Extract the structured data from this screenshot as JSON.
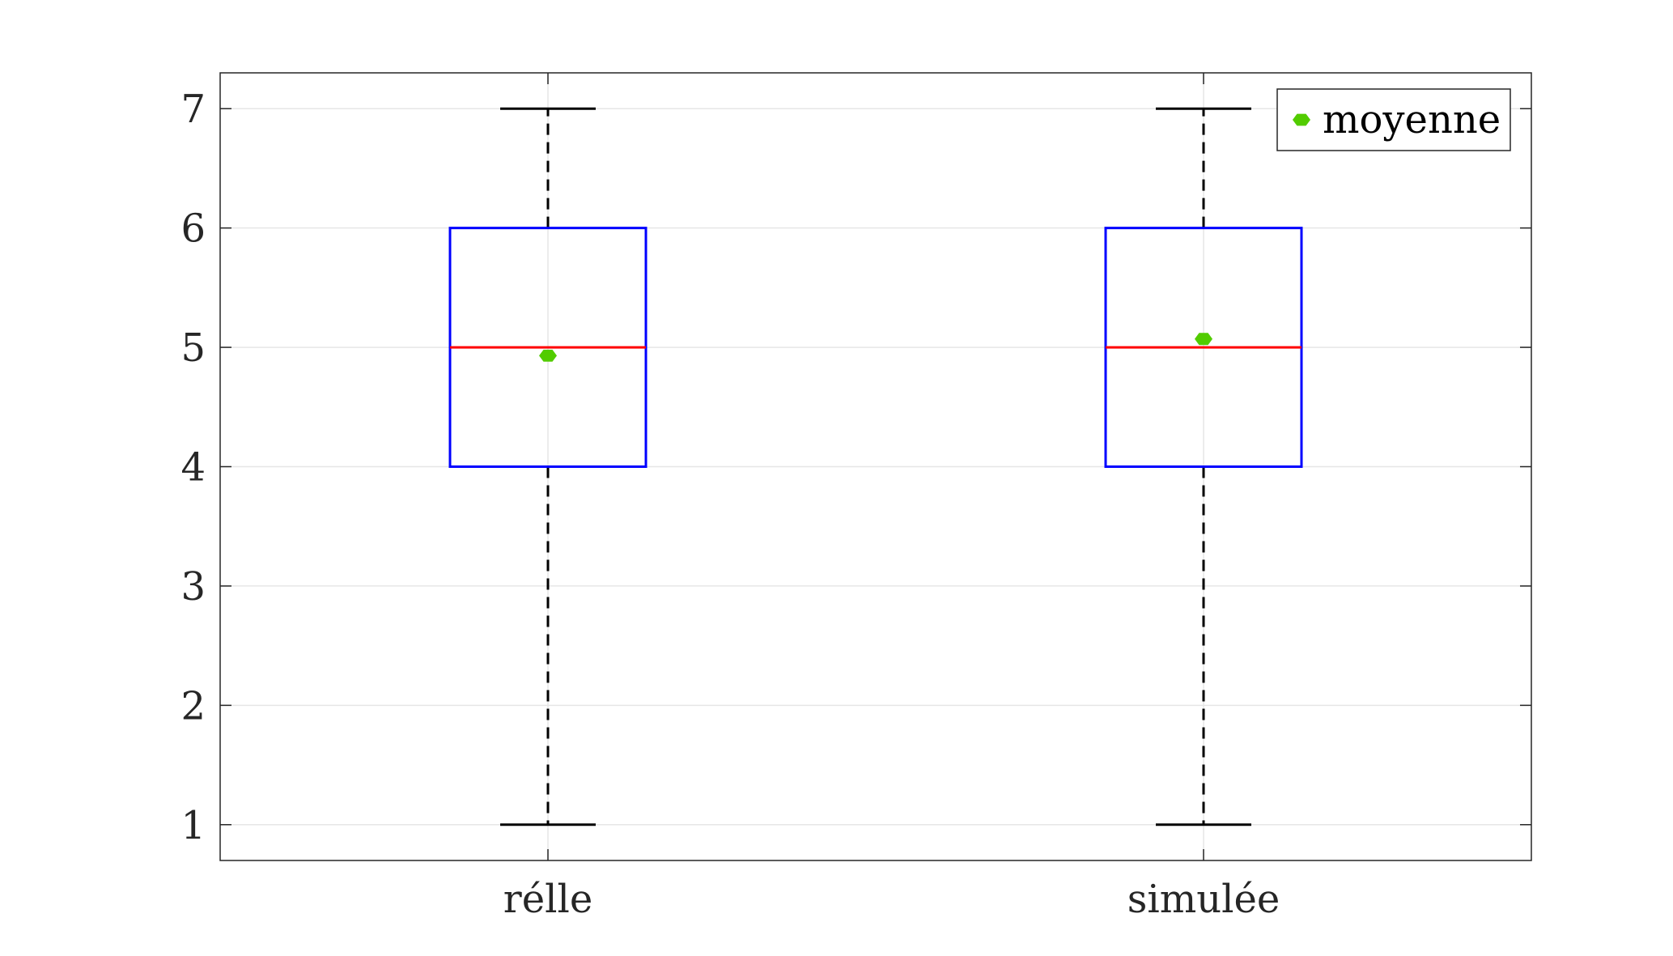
{
  "chart_data": {
    "type": "box",
    "title": "",
    "xlabel": "",
    "ylabel": "",
    "categories": [
      "rélle",
      "simulée"
    ],
    "ylim": [
      0.7,
      7.3
    ],
    "yticks": [
      1,
      2,
      3,
      4,
      5,
      6,
      7
    ],
    "grid": true,
    "legend": {
      "position": "top-right",
      "entries": [
        {
          "label": "moyenne",
          "marker": "hexagon",
          "color": "#52cc00"
        }
      ]
    },
    "boxes": [
      {
        "category": "rélle",
        "whisker_low": 1,
        "q1": 4,
        "median": 5,
        "q3": 6,
        "whisker_high": 7,
        "mean": 4.93
      },
      {
        "category": "simulée",
        "whisker_low": 1,
        "q1": 4,
        "median": 5,
        "q3": 6,
        "whisker_high": 7,
        "mean": 5.07
      }
    ],
    "colors": {
      "box": "#0000ff",
      "median": "#ff0000",
      "whisker": "#000000",
      "mean": "#52cc00",
      "grid": "#e6e6e6",
      "axes": "#262626"
    }
  }
}
